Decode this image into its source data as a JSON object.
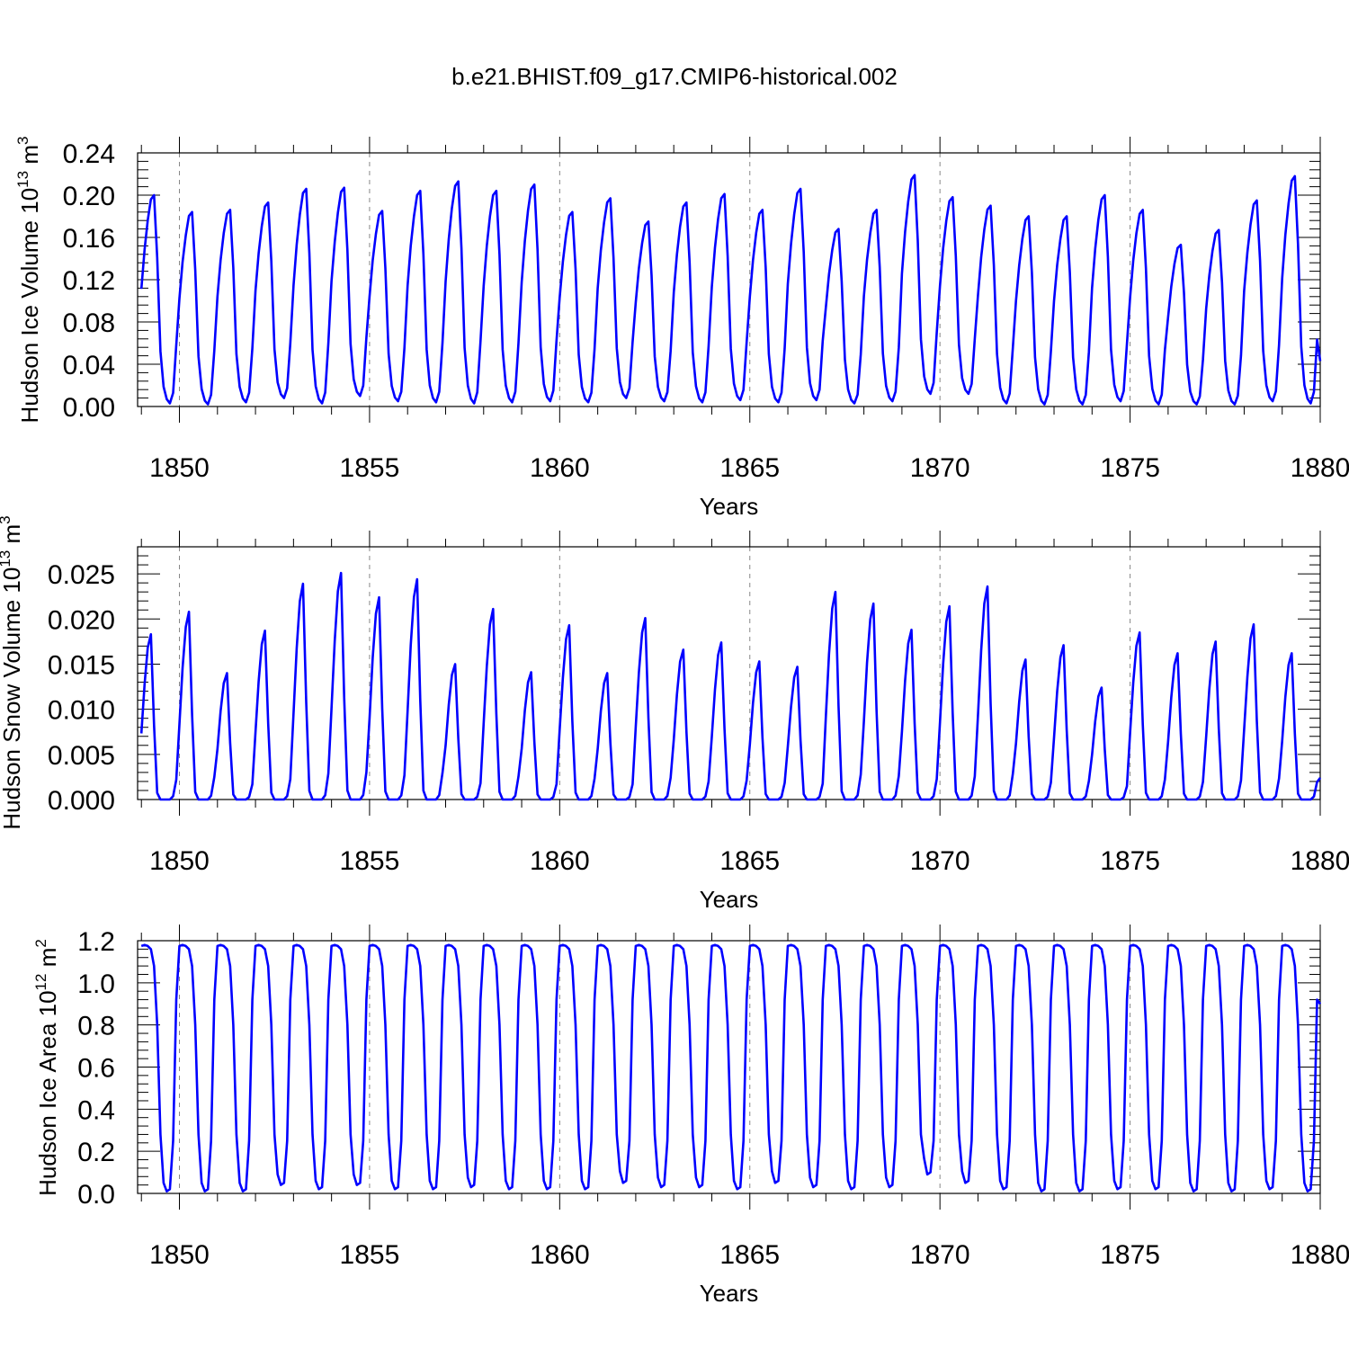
{
  "figure_title": "b.e21.BHIST.f09_g17.CMIP6-historical.002",
  "colors": {
    "series": "#0000ff",
    "axis": "#000000",
    "grid": "#888888"
  },
  "chart_data": [
    {
      "type": "line",
      "title": "b.e21.BHIST.f09_g17.CMIP6-historical.002",
      "xlabel": "Years",
      "ylabel_main": "Hudson Ice Volume 10",
      "ylabel_exp": "13",
      "ylabel_unit": " m",
      "ylabel_unit_exp": "3",
      "xlim": [
        1848.9,
        1880
      ],
      "ylim": [
        0,
        0.24
      ],
      "xticks": [
        1850,
        1855,
        1860,
        1865,
        1870,
        1875,
        1880
      ],
      "xtick_labels": [
        "1850",
        "1855",
        "1860",
        "1865",
        "1870",
        "1875",
        "1880"
      ],
      "yticks": [
        0,
        0.04,
        0.08,
        0.12,
        0.16,
        0.2,
        0.24
      ],
      "ytick_labels": [
        "0.00",
        "0.04",
        "0.08",
        "0.12",
        "0.16",
        "0.20",
        "0.24"
      ],
      "grid": "vertical dashed at labeled years",
      "series": [
        {
          "name": "Hudson Ice Volume",
          "start_year": 1849.0,
          "months_per_year": 12,
          "annual_peaks": [
            0.2,
            0.184,
            0.186,
            0.193,
            0.206,
            0.207,
            0.185,
            0.204,
            0.213,
            0.204,
            0.21,
            0.184,
            0.197,
            0.175,
            0.193,
            0.201,
            0.186,
            0.206,
            0.168,
            0.186,
            0.219,
            0.198,
            0.19,
            0.18,
            0.18,
            0.2,
            0.186,
            0.153,
            0.167,
            0.195,
            0.218
          ],
          "annual_minima": [
            0.003,
            0.002,
            0.004,
            0.008,
            0.003,
            0.01,
            0.005,
            0.004,
            0.003,
            0.004,
            0.005,
            0.004,
            0.008,
            0.005,
            0.004,
            0.006,
            0.004,
            0.006,
            0.003,
            0.005,
            0.012,
            0.012,
            0.003,
            0.002,
            0.002,
            0.005,
            0.002,
            0.002,
            0.002,
            0.005,
            0.003
          ],
          "seasonal_shape": [
            0.55,
            0.74,
            0.88,
            0.98,
            1.0,
            0.7,
            0.25,
            0.08,
            0.02,
            0.0,
            0.05,
            0.28
          ],
          "final_value": 0.043
        }
      ]
    },
    {
      "type": "line",
      "xlabel": "Years",
      "ylabel_main": "Hudson Snow Volume 10",
      "ylabel_exp": "13",
      "ylabel_unit": " m",
      "ylabel_unit_exp": "3",
      "xlim": [
        1848.9,
        1880
      ],
      "ylim": [
        0,
        0.028
      ],
      "xticks": [
        1850,
        1855,
        1860,
        1865,
        1870,
        1875,
        1880
      ],
      "xtick_labels": [
        "1850",
        "1855",
        "1860",
        "1865",
        "1870",
        "1875",
        "1880"
      ],
      "yticks": [
        0,
        0.005,
        0.01,
        0.015,
        0.02,
        0.025
      ],
      "ytick_labels": [
        "0.000",
        "0.005",
        "0.010",
        "0.015",
        "0.020",
        "0.025"
      ],
      "grid": "vertical dashed at labeled years",
      "series": [
        {
          "name": "Hudson Snow Volume",
          "start_year": 1849.0,
          "months_per_year": 12,
          "annual_peaks": [
            0.0183,
            0.0208,
            0.014,
            0.0187,
            0.0239,
            0.0251,
            0.0224,
            0.0244,
            0.015,
            0.0211,
            0.0141,
            0.0193,
            0.014,
            0.0201,
            0.0166,
            0.0174,
            0.0153,
            0.0147,
            0.023,
            0.0217,
            0.0188,
            0.0214,
            0.0236,
            0.0155,
            0.0171,
            0.0124,
            0.0185,
            0.0162,
            0.0175,
            0.0194,
            0.0162
          ],
          "seasonal_shape": [
            0.4,
            0.7,
            0.92,
            1.0,
            0.45,
            0.04,
            0.0,
            0.0,
            0.0,
            0.0,
            0.02,
            0.12
          ],
          "final_value": 0.0024
        }
      ]
    },
    {
      "type": "line",
      "xlabel": "Years",
      "ylabel_main": "Hudson Ice Area 10",
      "ylabel_exp": "12",
      "ylabel_unit": " m",
      "ylabel_unit_exp": "2",
      "xlim": [
        1848.9,
        1880
      ],
      "ylim": [
        0,
        1.2
      ],
      "xticks": [
        1850,
        1855,
        1860,
        1865,
        1870,
        1875,
        1880
      ],
      "xtick_labels": [
        "1850",
        "1855",
        "1860",
        "1865",
        "1870",
        "1875",
        "1880"
      ],
      "yticks": [
        0,
        0.2,
        0.4,
        0.6,
        0.8,
        1.0,
        1.2
      ],
      "ytick_labels": [
        "0.0",
        "0.2",
        "0.4",
        "0.6",
        "0.8",
        "1.0",
        "1.2"
      ],
      "grid": "vertical dashed at labeled years",
      "series": [
        {
          "name": "Hudson Ice Area",
          "start_year": 1849.0,
          "months_per_year": 12,
          "seasonal_shape": [
            1.175,
            1.18,
            1.175,
            1.16,
            1.08,
            0.8,
            0.28,
            0.05,
            0.01,
            0.02,
            0.25,
            0.92
          ],
          "annual_minima": [
            0.01,
            0.01,
            0.01,
            0.04,
            0.02,
            0.04,
            0.02,
            0.02,
            0.03,
            0.02,
            0.02,
            0.02,
            0.05,
            0.03,
            0.03,
            0.02,
            0.05,
            0.03,
            0.02,
            0.03,
            0.09,
            0.05,
            0.02,
            0.01,
            0.01,
            0.02,
            0.02,
            0.01,
            0.01,
            0.02,
            0.01
          ],
          "final_value": 0.9
        }
      ]
    }
  ]
}
